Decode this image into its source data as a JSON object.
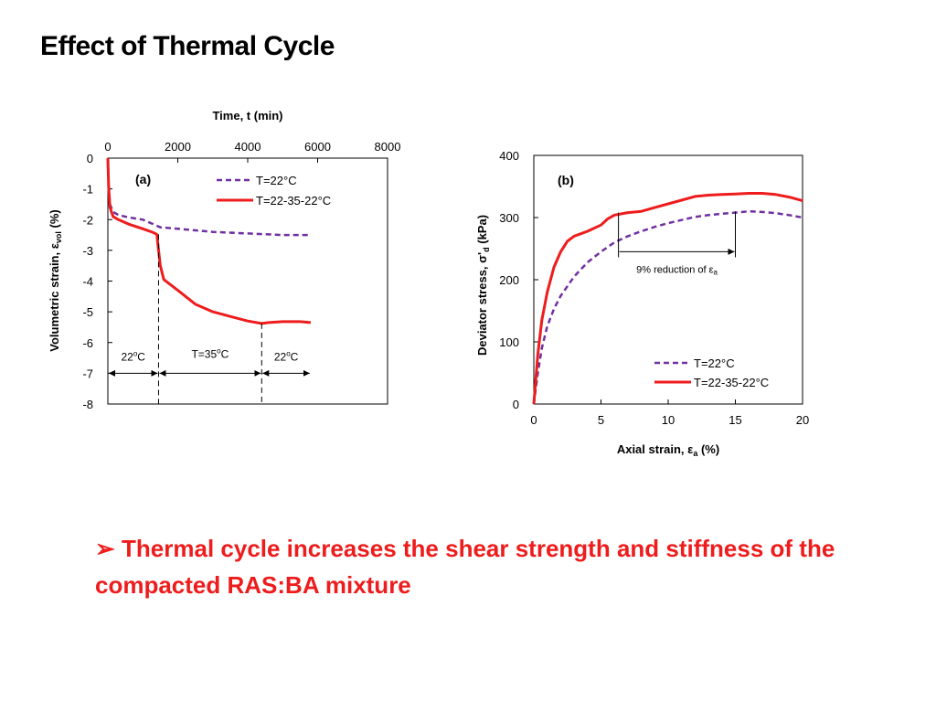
{
  "slide": {
    "title": "Effect of Thermal Cycle",
    "bullet_marker": "➢",
    "bullet_text": "Thermal cycle increases the shear strength and stiffness of the compacted RAS:BA mixture",
    "bullet_color": "#ee1c1c"
  },
  "colors": {
    "series_dashed": "#7030a0",
    "series_solid": "#ee1c1c"
  },
  "chart_data": [
    {
      "type": "line",
      "panel": "(a)",
      "xlabel": "Time, t (min)",
      "ylabel": "Volumetric strain, ε",
      "ylabel_sub": "vol",
      "ylabel_unit": "(%)",
      "xaxis_position": "top",
      "xlim": [
        0,
        8000
      ],
      "ylim": [
        -8,
        0
      ],
      "xticks": [
        0,
        2000,
        4000,
        6000,
        8000
      ],
      "yticks": [
        0,
        -1,
        -2,
        -3,
        -4,
        -5,
        -6,
        -7,
        -8
      ],
      "legend": {
        "placement": "top-right",
        "entries": [
          "T=22°C",
          "T=22-35-22°C"
        ]
      },
      "series": [
        {
          "name": "T=22°C",
          "style": "dashed",
          "color": "#7030a0",
          "x": [
            0,
            20,
            60,
            150,
            300,
            600,
            1000,
            1200,
            1400,
            1500,
            2000,
            3000,
            4000,
            5000,
            5800
          ],
          "y": [
            0,
            -0.8,
            -1.5,
            -1.75,
            -1.85,
            -1.93,
            -2.0,
            -2.1,
            -2.2,
            -2.25,
            -2.3,
            -2.4,
            -2.45,
            -2.5,
            -2.5
          ]
        },
        {
          "name": "T=22-35-22°C",
          "style": "solid",
          "color": "#ee1c1c",
          "x": [
            0,
            20,
            60,
            150,
            300,
            600,
            1000,
            1300,
            1400,
            1450,
            1500,
            1600,
            2000,
            2500,
            3000,
            3500,
            4000,
            4400,
            4600,
            5000,
            5500,
            5800
          ],
          "y": [
            0,
            -0.9,
            -1.6,
            -1.9,
            -2.0,
            -2.15,
            -2.3,
            -2.42,
            -2.48,
            -3.0,
            -3.5,
            -3.95,
            -4.3,
            -4.75,
            -5.0,
            -5.15,
            -5.3,
            -5.38,
            -5.35,
            -5.32,
            -5.32,
            -5.35
          ]
        }
      ],
      "annotations": [
        {
          "label": "22",
          "sup": "o",
          "unit": "C",
          "from": 0,
          "to": 1450
        },
        {
          "label": "T=35",
          "sup": "o",
          "unit": "C",
          "from": 1450,
          "to": 4400
        },
        {
          "label": "22",
          "sup": "o",
          "unit": "C",
          "from": 4400,
          "to": 5800
        }
      ]
    },
    {
      "type": "line",
      "panel": "(b)",
      "xlabel": "Axial strain, ε",
      "xlabel_sub": "a",
      "xlabel_unit": "(%)",
      "ylabel": "Deviator stress, σ'",
      "ylabel_sub": "d",
      "ylabel_unit": "(kPa)",
      "xlim": [
        0,
        20
      ],
      "ylim": [
        0,
        400
      ],
      "xticks": [
        0,
        5,
        10,
        15,
        20
      ],
      "yticks": [
        0,
        100,
        200,
        300,
        400
      ],
      "legend": {
        "placement": "bottom-right",
        "entries": [
          "T=22°C",
          "T=22-35-22°C"
        ]
      },
      "series": [
        {
          "name": "T=22°C",
          "style": "dashed",
          "color": "#7030a0",
          "x": [
            0,
            0.3,
            0.6,
            1.0,
            1.5,
            2.0,
            3.0,
            4.0,
            5.0,
            6.0,
            7.0,
            8.0,
            9.0,
            10.0,
            11.0,
            12.0,
            13.0,
            14.0,
            15.0,
            16.0,
            17.0,
            18.0,
            19.0,
            20.0
          ],
          "y": [
            0,
            50,
            90,
            125,
            153,
            174,
            205,
            228,
            245,
            260,
            270,
            278,
            285,
            291,
            296,
            301,
            304,
            306,
            308,
            310,
            309,
            307,
            304,
            300
          ]
        },
        {
          "name": "T=22-35-22°C",
          "style": "solid",
          "color": "#ee1c1c",
          "x": [
            0,
            0.3,
            0.6,
            1.0,
            1.5,
            2.0,
            2.5,
            3.0,
            4.0,
            5.0,
            5.5,
            6.0,
            7.0,
            8.0,
            9.0,
            10.0,
            11.0,
            12.0,
            13.0,
            14.0,
            15.0,
            16.0,
            17.0,
            18.0,
            19.0,
            20.0
          ],
          "y": [
            0,
            80,
            135,
            180,
            220,
            245,
            262,
            270,
            278,
            288,
            298,
            304,
            308,
            310,
            316,
            322,
            328,
            334,
            336,
            337,
            338,
            339,
            339,
            337,
            333,
            327
          ]
        }
      ],
      "annotation": {
        "label": "9% reduction of ε",
        "sub": "a",
        "from_x": 6.3,
        "to_x": 15.0,
        "y": 245
      }
    }
  ]
}
